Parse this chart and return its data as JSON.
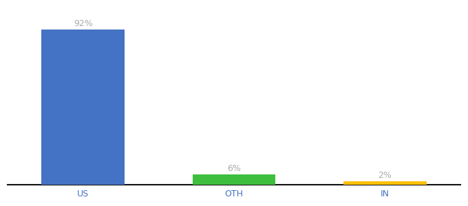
{
  "categories": [
    "US",
    "OTH",
    "IN"
  ],
  "values": [
    92,
    6,
    2
  ],
  "bar_colors": [
    "#4472C4",
    "#3DBE3D",
    "#FFC107"
  ],
  "labels": [
    "92%",
    "6%",
    "2%"
  ],
  "background_color": "#ffffff",
  "label_color": "#aaaaaa",
  "label_fontsize": 9,
  "tick_fontsize": 9,
  "tick_color": "#4472C4",
  "bar_width": 0.55,
  "ylim": [
    0,
    105
  ],
  "axis_line_color": "#111111",
  "xlim": [
    -0.5,
    2.5
  ]
}
